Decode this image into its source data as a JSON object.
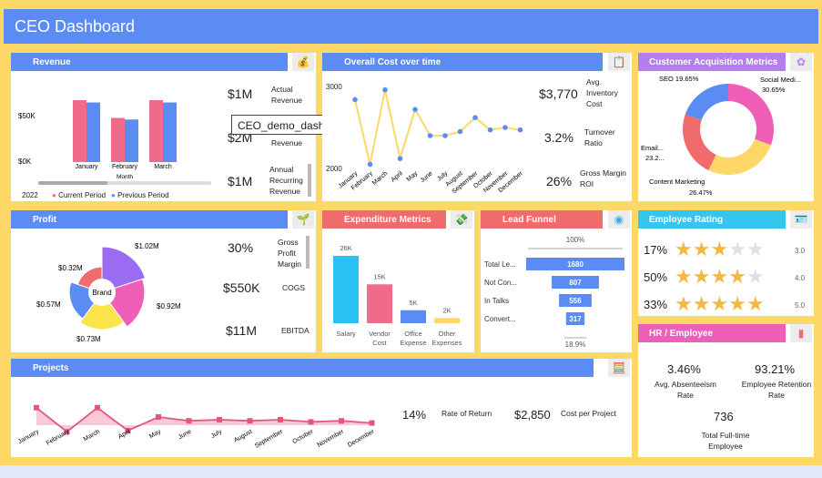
{
  "title": "CEO Dashboard",
  "tooltip": "CEO_demo_dashboard",
  "colors": {
    "blue": "#5a8cf4",
    "pink": "#f06b8a",
    "yellow": "#fdd867",
    "orange": "#f4b942"
  },
  "revenue": {
    "title": "Revenue",
    "year": "2022",
    "y_ticks": [
      "$50K",
      "$0K"
    ],
    "x_label": "Month",
    "legend_current": "Current Period",
    "legend_previous": "Previous Period",
    "kpis": [
      {
        "value": "$1M",
        "label": "Actual Revenue"
      },
      {
        "value": "$2M",
        "label": "Revenue"
      },
      {
        "value": "$1M",
        "label": "Annual Recurring Revenue"
      }
    ]
  },
  "cost": {
    "title": "Overall Cost over time",
    "y_top": "3000",
    "y_bottom": "2000",
    "kpis": [
      {
        "value": "$3,770",
        "label": "Avg. Inventory Cost"
      },
      {
        "value": "3.2%",
        "label": "Turnover Ratio"
      },
      {
        "value": "26%",
        "label": "Gross Margin ROI"
      }
    ]
  },
  "acq": {
    "title": "Customer Acquisition Metrics"
  },
  "profit": {
    "title": "Profit",
    "center": "Brand",
    "kpis": [
      {
        "value": "30%",
        "label": "Gross Profit Margin"
      },
      {
        "value": "$550K",
        "label": "COGS"
      },
      {
        "value": "$11M",
        "label": "EBITDA"
      }
    ]
  },
  "expenditure": {
    "title": "Expenditure Metrics"
  },
  "funnel": {
    "title": "Lead Funnel",
    "top": "100%",
    "bottom": "18.9%"
  },
  "rating": {
    "title": "Employee Rating",
    "rows": [
      {
        "pct": "17%",
        "score": "3.0",
        "stars": 3
      },
      {
        "pct": "50%",
        "score": "4.0",
        "stars": 4
      },
      {
        "pct": "33%",
        "score": "5.0",
        "stars": 5
      }
    ]
  },
  "hr": {
    "title": "HR / Employee",
    "items": [
      {
        "value": "3.46%",
        "label": "Avg. Absenteeism Rate"
      },
      {
        "value": "93.21%",
        "label": "Employee Retention Rate"
      },
      {
        "value": "736",
        "label": "Total Full-time Employee"
      }
    ]
  },
  "projects": {
    "title": "Projects",
    "kpis": [
      {
        "value": "14%",
        "label": "Rate of Return"
      },
      {
        "value": "$2,850",
        "label": "Cost per Project"
      }
    ]
  },
  "chart_data": [
    {
      "type": "bar",
      "title": "Revenue",
      "categories": [
        "January",
        "February",
        "March"
      ],
      "series": [
        {
          "name": "Current Period",
          "values": [
            80,
            57,
            80
          ]
        },
        {
          "name": "Previous Period",
          "values": [
            77,
            55,
            77
          ]
        }
      ],
      "xlabel": "Month",
      "ylim": [
        0,
        100
      ]
    },
    {
      "type": "line",
      "title": "Overall Cost over time",
      "categories": [
        "January",
        "February",
        "March",
        "April",
        "May",
        "June",
        "July",
        "August",
        "September",
        "October",
        "November",
        "December"
      ],
      "values": [
        2840,
        2050,
        2960,
        2120,
        2720,
        2400,
        2400,
        2450,
        2620,
        2470,
        2500,
        2470
      ],
      "ylim": [
        2000,
        3000
      ]
    },
    {
      "type": "pie",
      "title": "Customer Acquisition Metrics",
      "labels": [
        "Social Media",
        "Content Marketing",
        "Email",
        "SEO"
      ],
      "values": [
        30.65,
        26.47,
        23.2,
        19.65
      ],
      "label_text": [
        "Social Medi...",
        "Content Marketing",
        "Email...",
        "SEO 19.65%"
      ],
      "pct_text": [
        "30.65%",
        "26.47%",
        "23.2...",
        ""
      ]
    },
    {
      "type": "pie",
      "title": "Profit",
      "labels": [
        "$1.02M",
        "$0.92M",
        "$0.73M",
        "$0.57M",
        "$0.32M"
      ],
      "values": [
        1.02,
        0.92,
        0.73,
        0.57,
        0.32
      ]
    },
    {
      "type": "bar",
      "title": "Expenditure Metrics",
      "categories": [
        "Salary",
        "Vendor Cost",
        "Office Expense",
        "Other Expenses"
      ],
      "values": [
        26,
        15,
        5,
        2
      ],
      "labels": [
        "26K",
        "15K",
        "5K",
        "2K"
      ],
      "ylim": [
        0,
        26
      ]
    },
    {
      "type": "bar",
      "title": "Lead Funnel",
      "categories": [
        "Total Le...",
        "Not Con...",
        "In Talks",
        "Convert..."
      ],
      "values": [
        1680,
        807,
        556,
        317
      ]
    },
    {
      "type": "area",
      "title": "Projects",
      "categories": [
        "January",
        "February",
        "March",
        "April",
        "May",
        "June",
        "July",
        "August",
        "September",
        "October",
        "November",
        "December"
      ],
      "values": [
        62,
        18,
        62,
        20,
        45,
        38,
        40,
        38,
        40,
        36,
        38,
        34
      ],
      "ylim": [
        0,
        80
      ]
    }
  ]
}
